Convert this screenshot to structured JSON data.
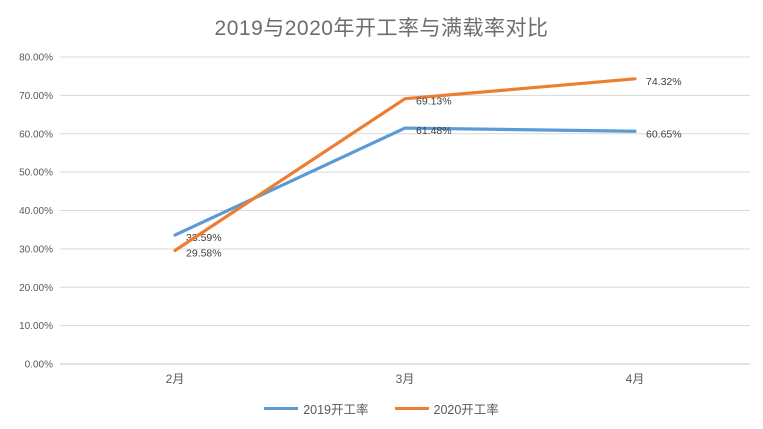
{
  "chart_data": {
    "type": "line",
    "title": "2019与2020年开工率与满载率对比",
    "categories": [
      "2月",
      "3月",
      "4月"
    ],
    "series": [
      {
        "name": "2019开工率",
        "color": "#5B9BD5",
        "values": [
          33.59,
          61.48,
          60.65
        ],
        "labels": [
          "33.59%",
          "61.48%",
          "60.65%"
        ]
      },
      {
        "name": "2020开工率",
        "color": "#ED7D31",
        "values": [
          29.58,
          69.13,
          74.32
        ],
        "labels": [
          "29.58%",
          "69.13%",
          "74.32%"
        ]
      }
    ],
    "ylim": [
      0,
      80
    ],
    "ytick_step": 10,
    "ytick_labels": [
      "0.00%",
      "10.00%",
      "20.00%",
      "30.00%",
      "40.00%",
      "50.00%",
      "60.00%",
      "70.00%",
      "80.00%"
    ],
    "grid": true,
    "legend_position": "bottom",
    "xlabel": "",
    "ylabel": ""
  },
  "colors": {
    "gridline": "#d9d9d9",
    "axis_line": "#c6c6c6",
    "tick_label": "#595959",
    "data_label": "#404040",
    "title": "#6d6d6d"
  }
}
